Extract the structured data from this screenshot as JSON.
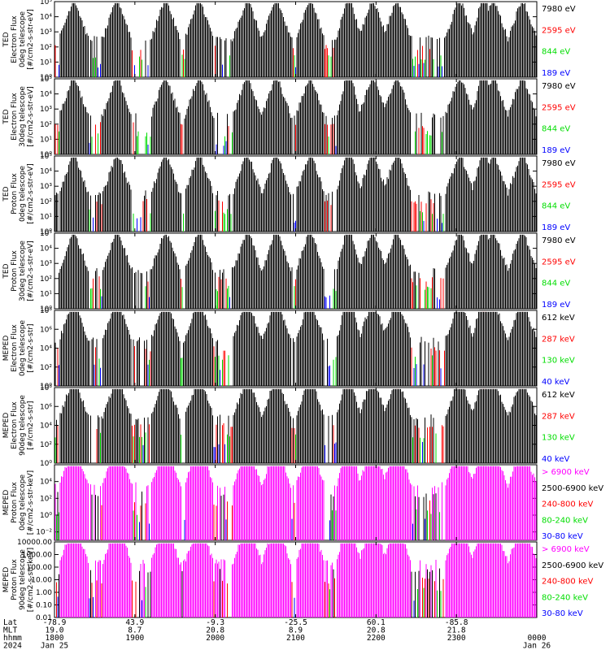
{
  "chart_data": {
    "type": "line",
    "x_axis": {
      "row_labels": [
        "Lat",
        "MLT",
        "hhmm",
        "2024"
      ],
      "ticks": [
        {
          "hhmm": "1800",
          "lat": "-78.9",
          "mlt": "19.0",
          "date": "Jan 25"
        },
        {
          "hhmm": "1900",
          "lat": "43.9",
          "mlt": "8.7",
          "date": ""
        },
        {
          "hhmm": "2000",
          "lat": "-9.3",
          "mlt": "20.8",
          "date": ""
        },
        {
          "hhmm": "2100",
          "lat": "-25.5",
          "mlt": "8.9",
          "date": ""
        },
        {
          "hhmm": "2200",
          "lat": "60.1",
          "mlt": "20.8",
          "date": ""
        },
        {
          "hhmm": "2300",
          "lat": "-85.8",
          "mlt": "21.8",
          "date": ""
        },
        {
          "hhmm": "0000",
          "lat": "",
          "mlt": "",
          "date": "Jan 26"
        }
      ]
    },
    "panels": [
      {
        "ylabel": [
          "TED",
          "Electron Flux",
          "0deg telescope",
          "[#/cm2-s-str-eV]"
        ],
        "yscale": "log",
        "ylim": [
          1,
          100000
        ],
        "ticks": [
          "10⁰",
          "10¹",
          "10²",
          "10³",
          "10⁴",
          "10⁵"
        ],
        "tick_values": [
          1,
          10,
          100,
          1000,
          10000,
          100000
        ],
        "series": [
          {
            "name": "7980 eV",
            "color": "#000000"
          },
          {
            "name": "2595 eV",
            "color": "#ff0000"
          },
          {
            "name": "844 eV",
            "color": "#00dd00"
          },
          {
            "name": "189 eV",
            "color": "#0000ff"
          }
        ]
      },
      {
        "ylabel": [
          "TED",
          "Electron Flux",
          "30deg telescope",
          "[#/cm2-s-str-eV]"
        ],
        "yscale": "log",
        "ylim": [
          1,
          100000
        ],
        "ticks": [
          "10⁰",
          "10¹",
          "10²",
          "10³",
          "10⁴",
          "10⁵"
        ],
        "tick_values": [
          1,
          10,
          100,
          1000,
          10000,
          100000
        ],
        "series": [
          {
            "name": "7980 eV",
            "color": "#000000"
          },
          {
            "name": "2595 eV",
            "color": "#ff0000"
          },
          {
            "name": "844 eV",
            "color": "#00dd00"
          },
          {
            "name": "189 eV",
            "color": "#0000ff"
          }
        ]
      },
      {
        "ylabel": [
          "TED",
          "Proton Flux",
          "0deg telescope",
          "[#/cm2-s-str-eV]"
        ],
        "yscale": "log",
        "ylim": [
          1,
          100000
        ],
        "ticks": [
          "10⁰",
          "10¹",
          "10²",
          "10³",
          "10⁴",
          "10⁵"
        ],
        "tick_values": [
          1,
          10,
          100,
          1000,
          10000,
          100000
        ],
        "series": [
          {
            "name": "7980 eV",
            "color": "#000000"
          },
          {
            "name": "2595 eV",
            "color": "#ff0000"
          },
          {
            "name": "844 eV",
            "color": "#00dd00"
          },
          {
            "name": "189 eV",
            "color": "#0000ff"
          }
        ]
      },
      {
        "ylabel": [
          "TED",
          "Proton Flux",
          "30deg telescope",
          "[#/cm2-s-str-eV]"
        ],
        "yscale": "log",
        "ylim": [
          1,
          100000
        ],
        "ticks": [
          "10⁰",
          "10¹",
          "10²",
          "10³",
          "10⁴",
          "10⁵"
        ],
        "tick_values": [
          1,
          10,
          100,
          1000,
          10000,
          100000
        ],
        "series": [
          {
            "name": "7980 eV",
            "color": "#000000"
          },
          {
            "name": "2595 eV",
            "color": "#ff0000"
          },
          {
            "name": "844 eV",
            "color": "#00dd00"
          },
          {
            "name": "189 eV",
            "color": "#0000ff"
          }
        ]
      },
      {
        "ylabel": [
          "MEPED",
          "Electron Flux",
          "0deg telescope",
          "[#/cm2-s-str]"
        ],
        "yscale": "log",
        "ylim": [
          1,
          100000000
        ],
        "ticks": [
          "10⁰",
          "10²",
          "10⁴",
          "10⁶",
          "10⁸"
        ],
        "tick_values": [
          1,
          100,
          10000,
          1000000,
          100000000
        ],
        "series": [
          {
            "name": "612 keV",
            "color": "#000000"
          },
          {
            "name": "287 keV",
            "color": "#ff0000"
          },
          {
            "name": "130 keV",
            "color": "#00dd00"
          },
          {
            "name": "40 keV",
            "color": "#0000ff"
          }
        ]
      },
      {
        "ylabel": [
          "MEPED",
          "Electron Flux",
          "90deg telescope",
          "[#/cm2-s-str]"
        ],
        "yscale": "log",
        "ylim": [
          1,
          100000000
        ],
        "ticks": [
          "10⁰",
          "10²",
          "10⁴",
          "10⁶",
          "10⁸"
        ],
        "tick_values": [
          1,
          100,
          10000,
          1000000,
          100000000
        ],
        "series": [
          {
            "name": "612 keV",
            "color": "#000000"
          },
          {
            "name": "287 keV",
            "color": "#ff0000"
          },
          {
            "name": "130 keV",
            "color": "#00dd00"
          },
          {
            "name": "40 keV",
            "color": "#0000ff"
          }
        ]
      },
      {
        "ylabel": [
          "MEPED",
          "Proton Flux",
          "0deg telescope",
          "[#/cm2-s-str-keV]"
        ],
        "yscale": "log",
        "ylim": [
          0.001,
          1000000
        ],
        "ticks": [
          "10⁻²",
          "10⁰",
          "10²",
          "10⁴"
        ],
        "tick_values": [
          0.01,
          1,
          100,
          10000
        ],
        "series": [
          {
            "name": "> 6900 keV",
            "color": "#ff00ff"
          },
          {
            "name": "2500-6900 keV",
            "color": "#000000"
          },
          {
            "name": "240-800 keV",
            "color": "#ff0000"
          },
          {
            "name": "80-240 keV",
            "color": "#00dd00"
          },
          {
            "name": "30-80 keV",
            "color": "#0000ff"
          }
        ]
      },
      {
        "ylabel": [
          "MEPED",
          "Proton Flux",
          "90deg telescope",
          "[#/cm2-s-str-keV]"
        ],
        "yscale": "log",
        "ylim": [
          0.01,
          10000
        ],
        "ticks": [
          "0.01",
          "0.10",
          "1.00",
          "10.00",
          "100.00",
          "1000.00",
          "10000.00"
        ],
        "tick_values": [
          0.01,
          0.1,
          1,
          10,
          100,
          1000,
          10000
        ],
        "series": [
          {
            "name": "> 6900 keV",
            "color": "#ff00ff"
          },
          {
            "name": "2500-6900 keV",
            "color": "#000000"
          },
          {
            "name": "240-800 keV",
            "color": "#ff0000"
          },
          {
            "name": "80-240 keV",
            "color": "#00dd00"
          },
          {
            "name": "30-80 keV",
            "color": "#0000ff"
          }
        ]
      }
    ]
  }
}
